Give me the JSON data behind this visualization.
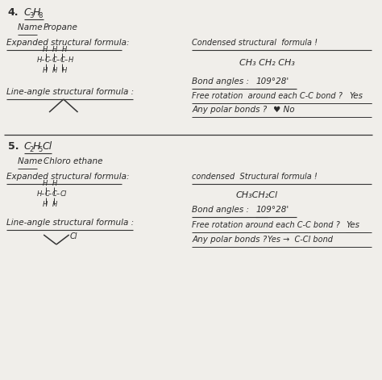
{
  "bg_color": "#f0eeea",
  "text_color": "#2a2a2a",
  "line_color": "#333333",
  "section4": {
    "num": "4.",
    "formula_parts": [
      "C",
      "3",
      "H",
      "8"
    ],
    "name": "Propane",
    "condensed_label": "Condensed structural  formula !",
    "condensed_value": "CH₃ CH₂ CH₃",
    "bond_label": "Bond angles :",
    "bond_value": "109°28'",
    "free_label": "Free rotation  around each C-C bond ?",
    "free_value": "Yes",
    "polar_label": "Any polar bonds ?",
    "polar_value": "♥ No"
  },
  "section5": {
    "num": "5.",
    "formula_parts": [
      "C",
      "2",
      "H",
      "5",
      "Cl"
    ],
    "name": "Chloro ethane",
    "condensed_label": "condensed  Structural formula !",
    "condensed_value": "CH₃CH₂Cl",
    "bond_label": "Bond angles :",
    "bond_value": "109°28'",
    "free_label": "Free rotation around each C-C bond ?",
    "free_value": "Yes",
    "polar_label": "Any polar bonds ?",
    "polar_value": "Yes →  C-Cl bond"
  }
}
